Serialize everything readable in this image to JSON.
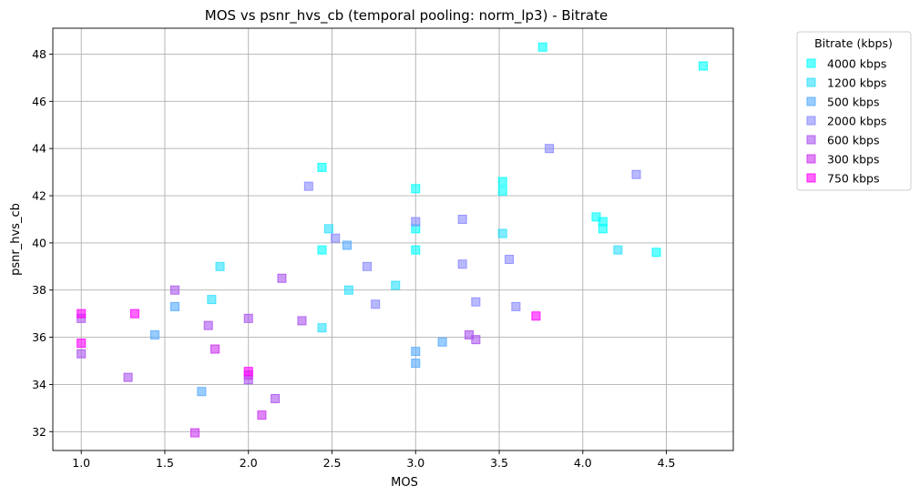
{
  "chart_data": {
    "type": "scatter",
    "title": "MOS vs psnr_hvs_cb (temporal pooling: norm_lp3) - Bitrate",
    "xlabel": "MOS",
    "ylabel": "psnr_hvs_cb",
    "xlim": [
      0.83,
      4.9
    ],
    "ylim": [
      31.2,
      49.1
    ],
    "xticks": [
      "1.0",
      "1.5",
      "2.0",
      "2.5",
      "3.0",
      "3.5",
      "4.0",
      "4.5"
    ],
    "yticks": [
      "32",
      "34",
      "36",
      "38",
      "40",
      "42",
      "44",
      "46",
      "48"
    ],
    "grid": true,
    "marker": "square",
    "legend": {
      "title": "Bitrate (kbps)",
      "placement": "outside-top-right"
    },
    "series": [
      {
        "name": "4000 kbps",
        "color": "#00ffff",
        "points": [
          [
            2.44,
            43.2
          ],
          [
            3.0,
            42.3
          ],
          [
            3.0,
            40.6
          ],
          [
            3.0,
            39.7
          ],
          [
            2.44,
            39.7
          ],
          [
            3.52,
            42.6
          ],
          [
            3.52,
            42.2
          ],
          [
            3.76,
            48.3
          ],
          [
            4.72,
            47.5
          ],
          [
            4.08,
            41.1
          ],
          [
            4.12,
            40.9
          ],
          [
            4.12,
            40.6
          ],
          [
            4.44,
            39.6
          ]
        ]
      },
      {
        "name": "1200 kbps",
        "color": "#2be0ff",
        "points": [
          [
            2.48,
            40.6
          ],
          [
            2.6,
            38.0
          ],
          [
            2.88,
            38.2
          ],
          [
            1.83,
            39.0
          ],
          [
            1.78,
            37.6
          ],
          [
            2.44,
            36.4
          ],
          [
            3.52,
            40.4
          ],
          [
            4.21,
            39.7
          ]
        ]
      },
      {
        "name": "500 kbps",
        "color": "#55aaff",
        "points": [
          [
            1.56,
            37.3
          ],
          [
            1.44,
            36.1
          ],
          [
            1.72,
            33.7
          ],
          [
            3.0,
            35.4
          ],
          [
            3.0,
            34.9
          ],
          [
            3.16,
            35.8
          ],
          [
            2.59,
            39.9
          ]
        ]
      },
      {
        "name": "2000 kbps",
        "color": "#8888ff",
        "points": [
          [
            2.36,
            42.4
          ],
          [
            2.52,
            40.2
          ],
          [
            2.71,
            39.0
          ],
          [
            2.76,
            37.4
          ],
          [
            3.0,
            40.9
          ],
          [
            3.28,
            41.0
          ],
          [
            3.28,
            39.1
          ],
          [
            3.36,
            37.5
          ],
          [
            3.56,
            39.3
          ],
          [
            3.6,
            37.3
          ],
          [
            3.8,
            44.0
          ],
          [
            4.32,
            42.9
          ]
        ]
      },
      {
        "name": "600 kbps",
        "color": "#aa55ee",
        "points": [
          [
            1.0,
            36.8
          ],
          [
            1.0,
            35.3
          ],
          [
            1.28,
            34.3
          ],
          [
            1.56,
            38.0
          ],
          [
            1.76,
            36.5
          ],
          [
            2.0,
            36.8
          ],
          [
            2.0,
            34.2
          ],
          [
            2.16,
            33.4
          ],
          [
            2.2,
            38.5
          ],
          [
            2.32,
            36.7
          ],
          [
            3.32,
            36.1
          ],
          [
            3.36,
            35.9
          ]
        ]
      },
      {
        "name": "300 kbps",
        "color": "#cc33ee",
        "points": [
          [
            1.68,
            31.95
          ],
          [
            1.8,
            35.5
          ],
          [
            2.0,
            34.4
          ],
          [
            2.08,
            32.7
          ]
        ]
      },
      {
        "name": "750 kbps",
        "color": "#ff00ff",
        "points": [
          [
            1.0,
            37.0
          ],
          [
            1.0,
            35.75
          ],
          [
            1.32,
            37.0
          ],
          [
            2.0,
            34.55
          ],
          [
            3.72,
            36.9
          ]
        ]
      }
    ]
  }
}
